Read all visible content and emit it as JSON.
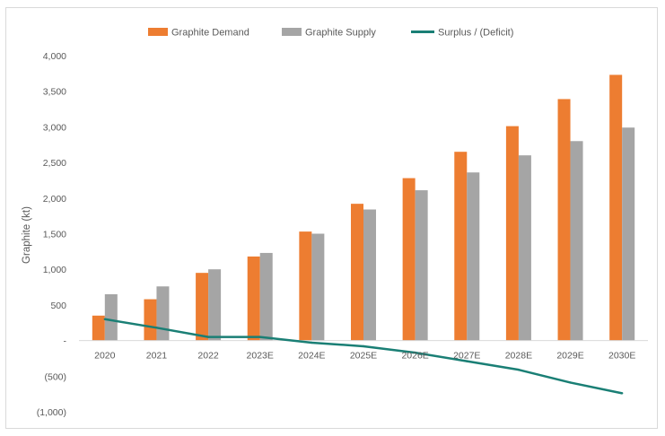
{
  "chart_data": {
    "type": "bar",
    "ylabel": "Graphite (kt)",
    "categories": [
      "2020",
      "2021",
      "2022",
      "2023E",
      "2024E",
      "2025E",
      "2026E",
      "2027E",
      "2028E",
      "2029E",
      "2030E"
    ],
    "series": [
      {
        "name": "Graphite Demand",
        "type": "bar",
        "color": "#ed7d31",
        "values": [
          350,
          580,
          950,
          1180,
          1530,
          1920,
          2280,
          2650,
          3010,
          3390,
          3730
        ]
      },
      {
        "name": "Graphite Supply",
        "type": "bar",
        "color": "#a5a5a5",
        "values": [
          650,
          760,
          1000,
          1230,
          1500,
          1840,
          2110,
          2360,
          2600,
          2800,
          2990
        ]
      },
      {
        "name": "Surplus / (Deficit)",
        "type": "line",
        "color": "#1a7f75",
        "values": [
          300,
          180,
          50,
          50,
          -30,
          -80,
          -170,
          -290,
          -410,
          -590,
          -740
        ]
      }
    ],
    "ylim": [
      -1000,
      4000
    ],
    "yticks": [
      -1000,
      -500,
      0,
      500,
      1000,
      1500,
      2000,
      2500,
      3000,
      3500,
      4000
    ],
    "ytick_labels": [
      "(1,000)",
      "(500)",
      "-",
      "500",
      "1,000",
      "1,500",
      "2,000",
      "2,500",
      "3,000",
      "3,500",
      "4,000"
    ],
    "legend_position": "top-center",
    "grid": false
  }
}
